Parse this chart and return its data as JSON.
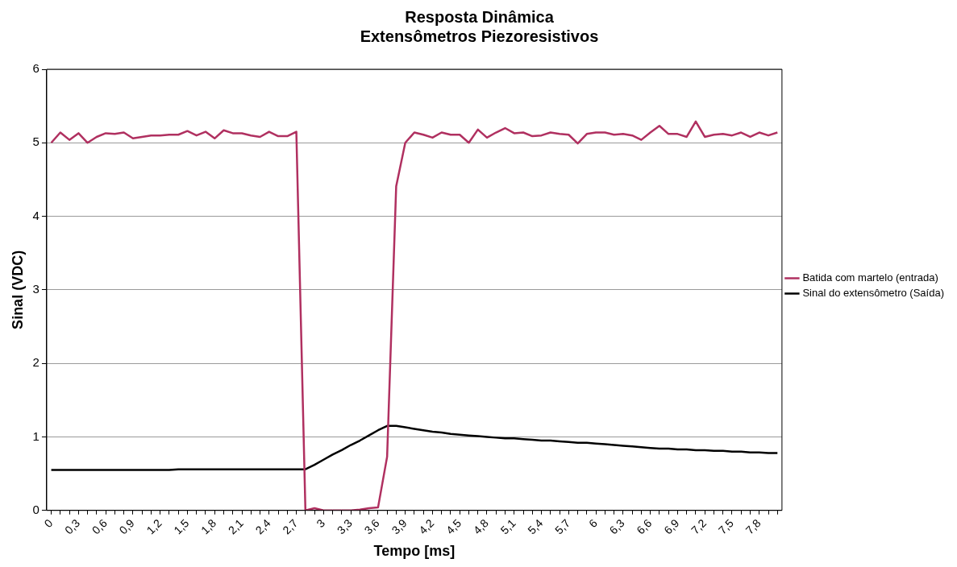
{
  "chart_data": {
    "type": "line",
    "title": "Resposta Dinâmica\nExtensômetros Piezoresistivos",
    "xlabel": "Tempo [ms]",
    "ylabel": "Sinal (VDC)",
    "categories": [
      "0",
      null,
      null,
      "0,3",
      null,
      null,
      "0,6",
      null,
      null,
      "0,9",
      null,
      null,
      "1,2",
      null,
      null,
      "1,5",
      null,
      null,
      "1,8",
      null,
      null,
      "2,1",
      null,
      null,
      "2,4",
      null,
      null,
      "2,7",
      null,
      null,
      "3",
      null,
      null,
      "3,3",
      null,
      null,
      "3,6",
      null,
      null,
      "3,9",
      null,
      null,
      "4,2",
      null,
      null,
      "4,5",
      null,
      null,
      "4,8",
      null,
      null,
      "5,1",
      null,
      null,
      "5,4",
      null,
      null,
      "5,7",
      null,
      null,
      "6",
      null,
      null,
      "6,3",
      null,
      null,
      "6,6",
      null,
      null,
      "6,9",
      null,
      null,
      "7,2",
      null,
      null,
      "7,5",
      null,
      null,
      "7,8",
      null,
      null
    ],
    "series": [
      {
        "name": "Batida com martelo (entrada)",
        "color": "#b03060",
        "values": [
          5.0,
          5.14,
          5.04,
          5.13,
          5.0,
          5.08,
          5.13,
          5.12,
          5.14,
          5.06,
          5.08,
          5.1,
          5.1,
          5.11,
          5.11,
          5.16,
          5.1,
          5.15,
          5.06,
          5.17,
          5.13,
          5.13,
          5.1,
          5.08,
          5.15,
          5.09,
          5.09,
          5.15,
          0,
          0.03,
          0,
          0,
          0,
          0,
          0.01,
          0.03,
          0.04,
          0.73,
          4.41,
          5.0,
          5.14,
          5.11,
          5.07,
          5.14,
          5.11,
          5.11,
          5.0,
          5.18,
          5.07,
          5.14,
          5.2,
          5.13,
          5.14,
          5.09,
          5.1,
          5.14,
          5.12,
          5.11,
          4.99,
          5.12,
          5.14,
          5.14,
          5.11,
          5.12,
          5.1,
          5.04,
          5.14,
          5.23,
          5.12,
          5.12,
          5.08,
          5.29,
          5.08,
          5.11,
          5.12,
          5.1,
          5.14,
          5.08,
          5.14,
          5.1,
          5.14
        ]
      },
      {
        "name": "Sinal do extensômetro (Saída)",
        "color": "#000000",
        "values": [
          0.55,
          0.55,
          0.55,
          0.55,
          0.55,
          0.55,
          0.55,
          0.55,
          0.55,
          0.55,
          0.55,
          0.55,
          0.55,
          0.55,
          0.56,
          0.56,
          0.56,
          0.56,
          0.56,
          0.56,
          0.56,
          0.56,
          0.56,
          0.56,
          0.56,
          0.56,
          0.56,
          0.56,
          0.56,
          0.62,
          0.69,
          0.76,
          0.82,
          0.89,
          0.95,
          1.02,
          1.09,
          1.15,
          1.15,
          1.13,
          1.11,
          1.09,
          1.07,
          1.06,
          1.04,
          1.03,
          1.02,
          1.01,
          1.0,
          0.99,
          0.98,
          0.98,
          0.97,
          0.96,
          0.95,
          0.95,
          0.94,
          0.93,
          0.92,
          0.92,
          0.91,
          0.9,
          0.89,
          0.88,
          0.87,
          0.86,
          0.85,
          0.84,
          0.84,
          0.83,
          0.83,
          0.82,
          0.82,
          0.81,
          0.81,
          0.8,
          0.8,
          0.79,
          0.79,
          0.78,
          0.78
        ]
      }
    ],
    "ylim": [
      0,
      6
    ],
    "yticks": [
      0,
      1,
      2,
      3,
      4,
      5,
      6
    ],
    "grid": "y",
    "legend": "right",
    "marker": "none",
    "line_style": "solid"
  }
}
